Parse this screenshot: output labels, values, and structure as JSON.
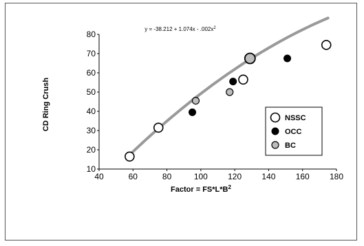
{
  "chart_data": {
    "type": "scatter",
    "equation": {
      "prefix": "y = -38.212 + 1.074x - .002x",
      "superscript": "2"
    },
    "xlabel": {
      "prefix": "Factor = FS*L*B",
      "superscript": "2"
    },
    "ylabel": "CD Ring Crush",
    "xlim": [
      40,
      180
    ],
    "ylim": [
      10,
      80
    ],
    "xticks": [
      40,
      60,
      80,
      100,
      120,
      140,
      160,
      180
    ],
    "yticks": [
      10,
      20,
      30,
      40,
      50,
      60,
      70,
      80
    ],
    "grid": false,
    "legend_position": "right",
    "fit": {
      "intercept": -38.212,
      "b1": 1.074,
      "b2": -0.002,
      "x_range": [
        58,
        175
      ],
      "color": "#999999"
    },
    "series": [
      {
        "name": "NSSC",
        "marker": "open-circle",
        "color": "#ffffff",
        "points": [
          [
            58,
            16.5
          ],
          [
            75,
            31.5
          ],
          [
            125,
            56.5
          ],
          [
            174,
            74.5
          ]
        ]
      },
      {
        "name": "OCC",
        "marker": "filled-circle",
        "color": "#000000",
        "points": [
          [
            95,
            39.5
          ],
          [
            119,
            55.5
          ],
          [
            151,
            67.5
          ]
        ]
      },
      {
        "name": "BC",
        "marker": "gray-circle",
        "color": "#bdbdbd",
        "points": [
          [
            97,
            45.5
          ],
          [
            117,
            50
          ],
          [
            129,
            67.5
          ]
        ]
      }
    ]
  }
}
